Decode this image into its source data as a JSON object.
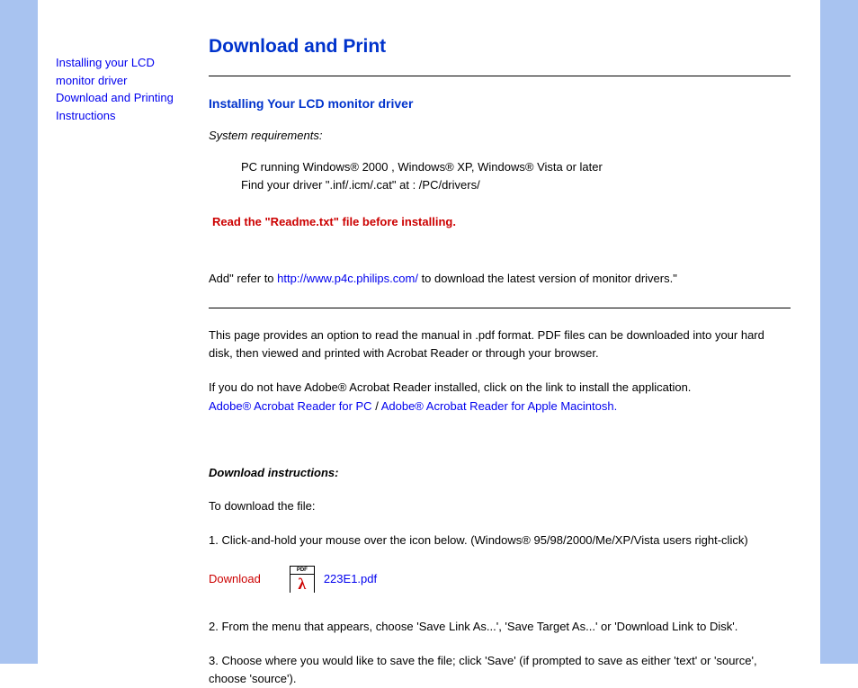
{
  "sidebar": {
    "link1": "Installing your LCD monitor driver",
    "link2": "Download and Printing Instructions"
  },
  "main": {
    "title": "Download and Print",
    "h2": "Installing Your LCD monitor driver",
    "sysreq_label": "System requirements:",
    "sysreq_line1": "PC running Windows® 2000 , Windows® XP, Windows® Vista or later",
    "sysreq_line2": "Find your driver \".inf/.icm/.cat\" at : /PC/drivers/",
    "readme": "Read the \"Readme.txt\" file before installing.",
    "referto_pre": "Add\" refer to ",
    "referto_link": "http://www.p4c.philips.com/",
    "referto_post": " to download the latest version of monitor drivers.\"",
    "body1": "This page provides an option to read the manual in .pdf format. PDF files can be downloaded into your hard disk, then viewed and printed with Acrobat Reader or through your browser.",
    "body2_pre": "If you do not have Adobe® Acrobat Reader installed, click on the link to install the application. ",
    "acrobat_pc": "Adobe® Acrobat Reader for PC",
    "slash": " / ",
    "acrobat_mac": "Adobe® Acrobat Reader for Apple Macintosh.",
    "h3": "Download instructions:",
    "dl_intro": "To download the file:",
    "dl_step1": "1. Click-and-hold your mouse over the icon below. (Windows® 95/98/2000/Me/XP/Vista users right-click)",
    "download_label": "Download",
    "pdf_icon_label": "PDF",
    "pdf_filename": "223E1.pdf",
    "dl_step2": "2. From the menu that appears, choose 'Save Link As...', 'Save Target As...' or 'Download Link to Disk'.",
    "dl_step3": "3. Choose where you would like to save the file; click 'Save' (if prompted to save as either 'text' or 'source', choose 'source')."
  },
  "colors": {
    "sidebar_bar": "#a8c3f0",
    "heading_blue": "#0033cc",
    "link_blue": "#0000ee",
    "red": "#cc0000",
    "text": "#000000"
  }
}
